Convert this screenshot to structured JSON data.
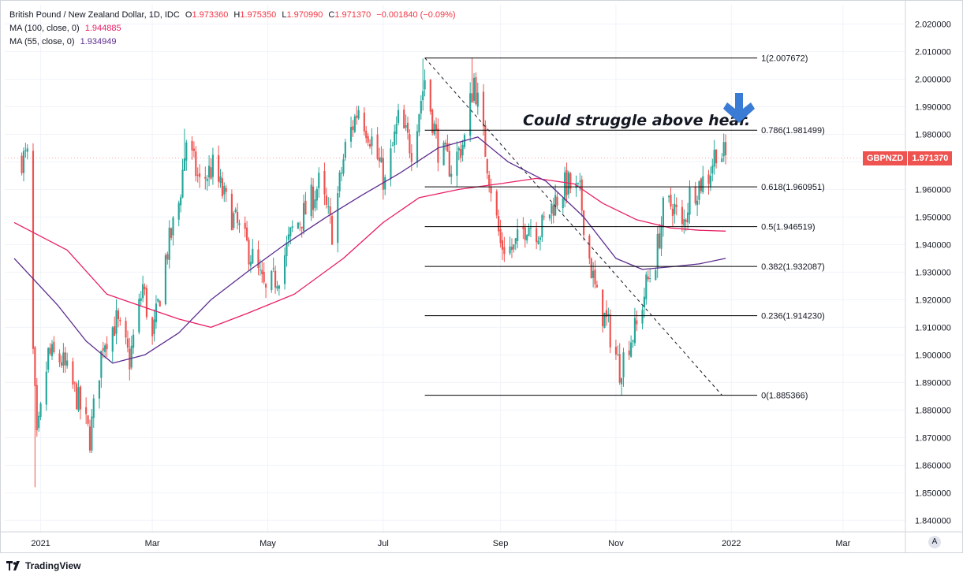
{
  "legend": {
    "title": "British Pound / New Zealand Dollar, 1D, IDC",
    "o_label": "O",
    "o": "1.973360",
    "h_label": "H",
    "h": "1.975350",
    "l_label": "L",
    "l": "1.970990",
    "c_label": "C",
    "c": "1.971370",
    "change": "−0.001840 (−0.09%)",
    "ma100_label": "MA (100, close, 0)",
    "ma100_value": "1.944885",
    "ma55_label": "MA (55, close, 0)",
    "ma55_value": "1.934949"
  },
  "price_tag": {
    "symbol": "GBPNZD",
    "value": "1.971370"
  },
  "annotation": "Could struggle above hear.",
  "footer": {
    "brand": "TradingView"
  },
  "auto_button": "A",
  "colors": {
    "up": "#26a69a",
    "down": "#ef5350",
    "ma100": "#e91e63",
    "ma55": "#5b2c8e",
    "arrow": "#3a7bd5"
  },
  "chart_data": {
    "type": "candlestick",
    "x_axis_labels": [
      "2021",
      "Mar",
      "May",
      "Jul",
      "Sep",
      "Nov",
      "2022",
      "Mar"
    ],
    "y_ticks": [
      "2.020000",
      "2.010000",
      "2.000000",
      "1.990000",
      "1.980000",
      "1.970000",
      "1.960000",
      "1.950000",
      "1.940000",
      "1.930000",
      "1.920000",
      "1.910000",
      "1.900000",
      "1.890000",
      "1.880000",
      "1.870000",
      "1.860000",
      "1.850000",
      "1.840000"
    ],
    "ylim": [
      1.837,
      2.025
    ],
    "fib_levels": [
      {
        "label": "1(2.007672)",
        "value": 2.007672
      },
      {
        "label": "0.786(1.981499)",
        "value": 1.981499
      },
      {
        "label": "0.618(1.960951)",
        "value": 1.960951
      },
      {
        "label": "0.5(1.946519)",
        "value": 1.946519
      },
      {
        "label": "0.382(1.932087)",
        "value": 1.932087
      },
      {
        "label": "0.236(1.914230)",
        "value": 1.91423
      },
      {
        "label": "0(1.885366)",
        "value": 1.885366
      }
    ],
    "fib_start_date": "2021-07-23",
    "fib_end_date": "2021-12-29",
    "trend_line": {
      "start": [
        "2021-07-23",
        2.0077
      ],
      "end": [
        "2021-12-27",
        1.8854
      ]
    },
    "close_anchors": [
      [
        "2020-12-28",
        1.9
      ],
      [
        "2020-12-30",
        1.868
      ],
      [
        "2021-01-05",
        1.9
      ],
      [
        "2021-01-12",
        1.898
      ],
      [
        "2021-01-20",
        1.885
      ],
      [
        "2021-01-27",
        1.87
      ],
      [
        "2021-02-03",
        1.905
      ],
      [
        "2021-02-10",
        1.912
      ],
      [
        "2021-02-17",
        1.898
      ],
      [
        "2021-02-24",
        1.925
      ],
      [
        "2021-03-01",
        1.905
      ],
      [
        "2021-03-08",
        1.935
      ],
      [
        "2021-03-15",
        1.955
      ],
      [
        "2021-03-19",
        1.978
      ],
      [
        "2021-03-26",
        1.962
      ],
      [
        "2021-04-02",
        1.968
      ],
      [
        "2021-04-09",
        1.955
      ],
      [
        "2021-04-16",
        1.945
      ],
      [
        "2021-04-23",
        1.935
      ],
      [
        "2021-04-30",
        1.922
      ],
      [
        "2021-05-07",
        1.93
      ],
      [
        "2021-05-14",
        1.945
      ],
      [
        "2021-05-21",
        1.952
      ],
      [
        "2021-05-28",
        1.962
      ],
      [
        "2021-06-04",
        1.945
      ],
      [
        "2021-06-11",
        1.975
      ],
      [
        "2021-06-18",
        1.99
      ],
      [
        "2021-06-25",
        1.978
      ],
      [
        "2021-07-02",
        1.962
      ],
      [
        "2021-07-09",
        1.985
      ],
      [
        "2021-07-16",
        1.975
      ],
      [
        "2021-07-23",
        2.0
      ],
      [
        "2021-07-30",
        1.975
      ],
      [
        "2021-08-06",
        1.968
      ],
      [
        "2021-08-13",
        1.978
      ],
      [
        "2021-08-18",
        2.0
      ],
      [
        "2021-08-25",
        1.97
      ],
      [
        "2021-09-01",
        1.94
      ],
      [
        "2021-09-08",
        1.938
      ],
      [
        "2021-09-15",
        1.948
      ],
      [
        "2021-09-22",
        1.945
      ],
      [
        "2021-09-29",
        1.955
      ],
      [
        "2021-10-06",
        1.962
      ],
      [
        "2021-10-13",
        1.958
      ],
      [
        "2021-10-18",
        1.935
      ],
      [
        "2021-10-22",
        1.92
      ],
      [
        "2021-10-28",
        1.91
      ],
      [
        "2021-11-03",
        1.895
      ],
      [
        "2021-11-08",
        1.905
      ],
      [
        "2021-11-12",
        1.91
      ],
      [
        "2021-11-17",
        1.925
      ],
      [
        "2021-11-22",
        1.935
      ],
      [
        "2021-11-26",
        1.952
      ],
      [
        "2021-12-01",
        1.955
      ],
      [
        "2021-12-06",
        1.945
      ],
      [
        "2021-12-10",
        1.958
      ],
      [
        "2021-12-15",
        1.962
      ],
      [
        "2021-12-20",
        1.965
      ],
      [
        "2021-12-24",
        1.975
      ],
      [
        "2021-12-29",
        1.9714
      ]
    ],
    "ma100_points": [
      [
        "2020-12-18",
        1.948
      ],
      [
        "2021-01-15",
        1.938
      ],
      [
        "2021-02-05",
        1.922
      ],
      [
        "2021-02-26",
        1.917
      ],
      [
        "2021-03-15",
        1.913
      ],
      [
        "2021-04-01",
        1.91
      ],
      [
        "2021-04-20",
        1.915
      ],
      [
        "2021-05-15",
        1.922
      ],
      [
        "2021-06-10",
        1.935
      ],
      [
        "2021-07-01",
        1.948
      ],
      [
        "2021-07-20",
        1.957
      ],
      [
        "2021-08-10",
        1.96
      ],
      [
        "2021-08-31",
        1.962
      ],
      [
        "2021-09-20",
        1.964
      ],
      [
        "2021-10-10",
        1.962
      ],
      [
        "2021-10-25",
        1.955
      ],
      [
        "2021-11-12",
        1.949
      ],
      [
        "2021-11-30",
        1.946
      ],
      [
        "2021-12-15",
        1.9452
      ],
      [
        "2021-12-29",
        1.9449
      ]
    ],
    "ma55_points": [
      [
        "2020-12-18",
        1.935
      ],
      [
        "2021-01-10",
        1.918
      ],
      [
        "2021-01-25",
        1.905
      ],
      [
        "2021-02-08",
        1.897
      ],
      [
        "2021-02-25",
        1.9
      ],
      [
        "2021-03-15",
        1.908
      ],
      [
        "2021-04-01",
        1.92
      ],
      [
        "2021-04-20",
        1.93
      ],
      [
        "2021-05-10",
        1.94
      ],
      [
        "2021-06-01",
        1.95
      ],
      [
        "2021-06-20",
        1.958
      ],
      [
        "2021-07-10",
        1.966
      ],
      [
        "2021-07-30",
        1.975
      ],
      [
        "2021-08-20",
        1.979
      ],
      [
        "2021-09-05",
        1.97
      ],
      [
        "2021-09-25",
        1.963
      ],
      [
        "2021-10-15",
        1.95
      ],
      [
        "2021-11-01",
        1.935
      ],
      [
        "2021-11-15",
        1.931
      ],
      [
        "2021-12-01",
        1.932
      ],
      [
        "2021-12-15",
        1.933
      ],
      [
        "2021-12-29",
        1.935
      ]
    ],
    "spikes": [
      [
        "2020-12-29",
        "low",
        1.852
      ],
      [
        "2021-07-22",
        "high",
        2.0075
      ],
      [
        "2021-08-17",
        "high",
        2.0078
      ],
      [
        "2021-11-04",
        "low",
        1.8854
      ],
      [
        "2021-03-18",
        "high",
        1.982
      ]
    ]
  }
}
